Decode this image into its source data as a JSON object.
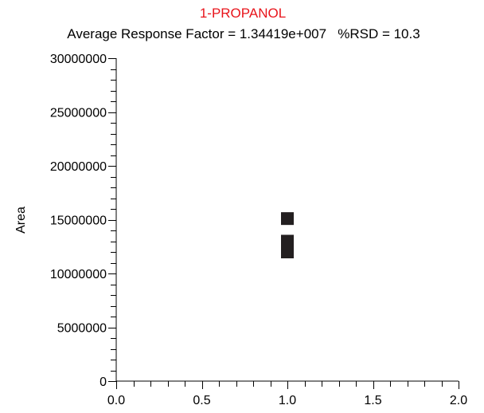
{
  "chart_data": {
    "type": "scatter",
    "title": "1-PROPANOL",
    "subtitle": "Average Response Factor = 1.34419e+007   %RSD = 10.3",
    "xlabel": "",
    "ylabel": "Area",
    "xlim": [
      0.0,
      2.0
    ],
    "ylim": [
      0,
      30000000
    ],
    "x_ticks": [
      "0.0",
      "0.5",
      "1.0",
      "1.5",
      "2.0"
    ],
    "x_tick_values": [
      0.0,
      0.5,
      1.0,
      1.5,
      2.0
    ],
    "y_ticks": [
      "0",
      "5000000",
      "10000000",
      "15000000",
      "20000000",
      "25000000",
      "30000000"
    ],
    "y_tick_values": [
      0,
      5000000,
      10000000,
      15000000,
      20000000,
      25000000,
      30000000
    ],
    "x_minor_step": 0.1,
    "y_minor_step": 1000000,
    "grid": false,
    "points": [
      {
        "x": 1.0,
        "y": 15100000
      },
      {
        "x": 1.0,
        "y": 13000000
      },
      {
        "x": 1.0,
        "y": 12000000
      }
    ],
    "colors": {
      "title": "#e8141b",
      "axis": "#000000",
      "marker": "#231f20"
    }
  }
}
